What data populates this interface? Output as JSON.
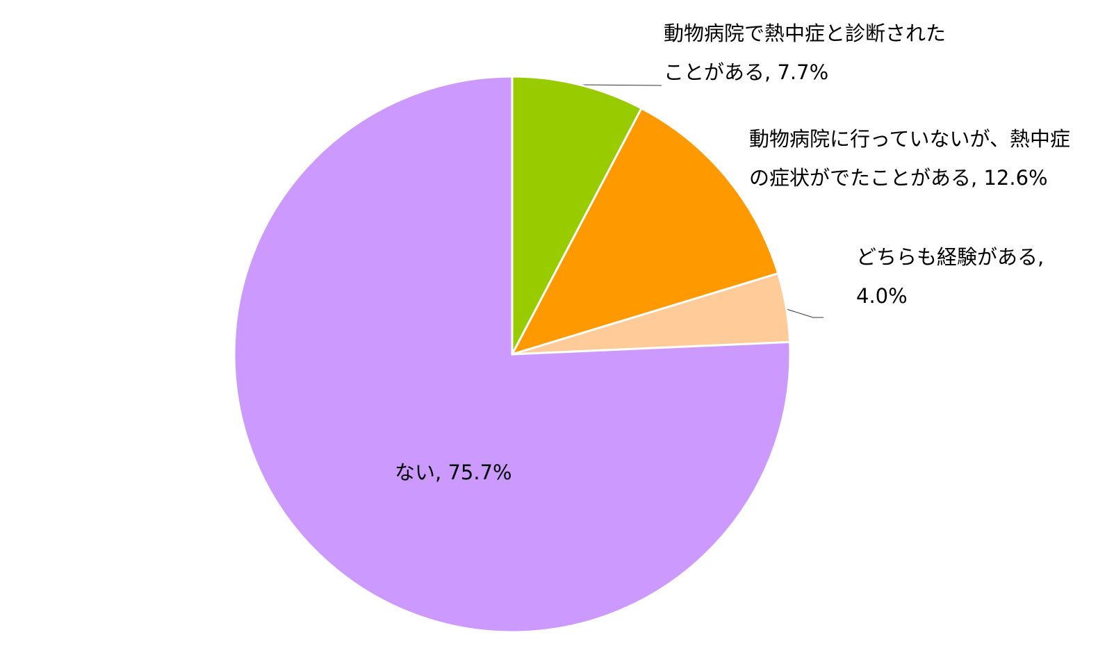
{
  "chart_data": {
    "type": "pie",
    "categories": [
      "動物病院で熱中症と診断されたことがある",
      "動物病院に行っていないが、熱中症の症状がでたことがある",
      "どちらも経験がある",
      "ない"
    ],
    "values": [
      7.7,
      12.6,
      4.0,
      75.7
    ],
    "value_labels": [
      "7.7%",
      "12.6%",
      "4.0%",
      "75.7%"
    ],
    "label_separator": ", ",
    "colors": [
      "#99cc00",
      "#ff9900",
      "#ffcc99",
      "#cc99ff"
    ]
  }
}
